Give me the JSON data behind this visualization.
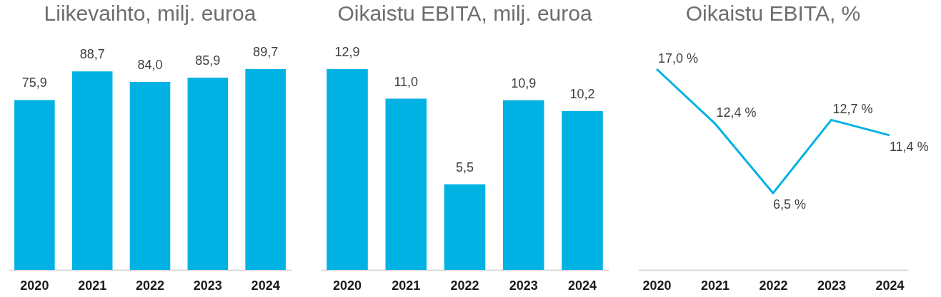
{
  "chart_data": [
    {
      "type": "bar",
      "title": "Liikevaihto, milj. euroa",
      "categories": [
        "2020",
        "2021",
        "2022",
        "2023",
        "2024"
      ],
      "values": [
        75.9,
        88.7,
        84.0,
        85.9,
        89.7
      ],
      "color": "#00b2e3",
      "value_labels": [
        "75,9",
        "88,7",
        "84,0",
        "85,9",
        "89,7"
      ],
      "tick_labels": "x"
    },
    {
      "type": "bar",
      "title": "Oikaistu EBITA, milj. euroa",
      "categories": [
        "2020",
        "2021",
        "2022",
        "2023",
        "2024"
      ],
      "values": [
        12.9,
        11.0,
        5.5,
        10.9,
        10.2
      ],
      "color": "#00b2e3",
      "value_labels": [
        "12,9",
        "11,0",
        "5,5",
        "10,9",
        "10,2"
      ],
      "tick_labels": "x"
    },
    {
      "type": "line",
      "title": "Oikaistu EBITA, %",
      "categories": [
        "2020",
        "2021",
        "2022",
        "2023",
        "2024"
      ],
      "values": [
        17.0,
        12.4,
        6.5,
        12.7,
        11.4
      ],
      "color": "#00b2e3",
      "value_labels": [
        "17,0 %",
        "12,4 %",
        "6,5 %",
        "12,7 %",
        "11,4 %"
      ],
      "tick_labels": "x"
    }
  ]
}
